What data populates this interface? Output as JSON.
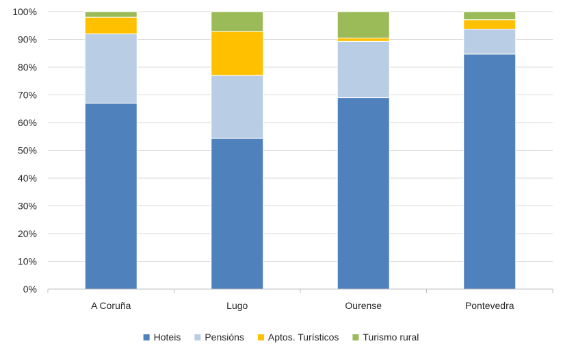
{
  "chart_data": {
    "type": "bar",
    "stacked": true,
    "normalized_percent": true,
    "categories": [
      "A Coruña",
      "Lugo",
      "Ourense",
      "Pontevedra"
    ],
    "series": [
      {
        "name": "Hoteis",
        "color": "#4F81BD",
        "values": [
          67,
          54.3,
          69,
          84.7
        ]
      },
      {
        "name": "Pensións",
        "color": "#B9CDE5",
        "values": [
          25,
          22.7,
          20.3,
          9
        ]
      },
      {
        "name": "Aptos. Turísticos",
        "color": "#FFC000",
        "values": [
          6,
          15.9,
          1.2,
          3.4
        ]
      },
      {
        "name": "Turismo rural",
        "color": "#9BBB59",
        "values": [
          2,
          7.1,
          9.5,
          2.9
        ]
      }
    ],
    "y_ticks": [
      "0%",
      "10%",
      "20%",
      "30%",
      "40%",
      "50%",
      "60%",
      "70%",
      "80%",
      "90%",
      "100%"
    ],
    "ylim": [
      0,
      100
    ],
    "grid": true,
    "legend_position": "bottom",
    "title": "",
    "xlabel": "",
    "ylabel": ""
  }
}
